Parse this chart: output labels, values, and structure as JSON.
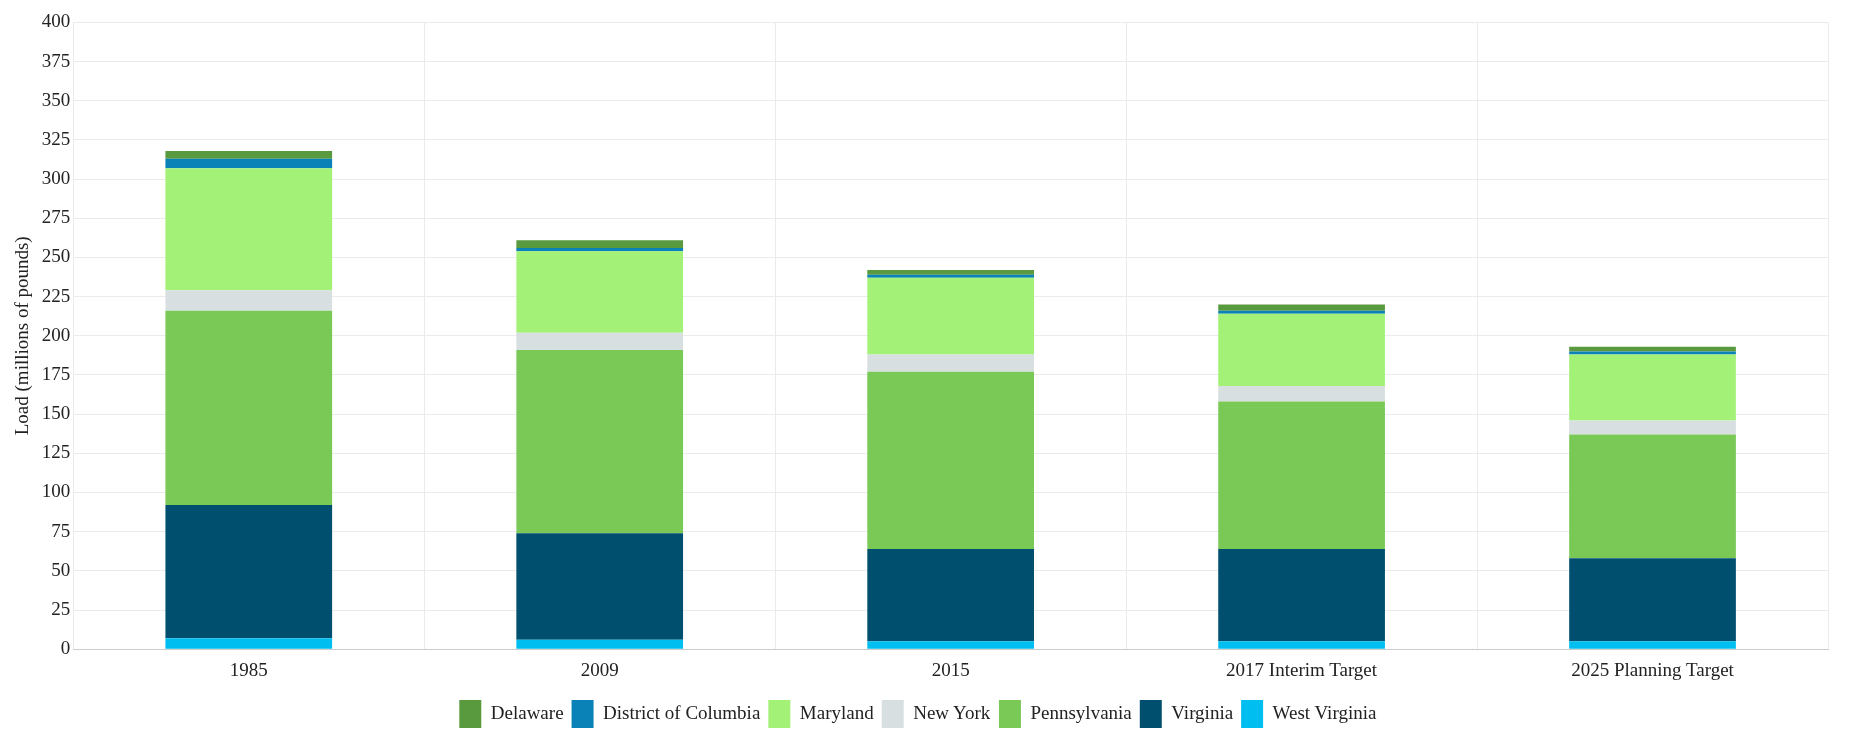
{
  "chart_data": {
    "type": "bar",
    "stacked": true,
    "ylabel": "Load (millions of pounds)",
    "categories": [
      "1985",
      "2009",
      "2015",
      "2017 Interim Target",
      "2025 Planning Target"
    ],
    "series": [
      {
        "name": "West Virginia",
        "color": "#00bff0",
        "values": [
          7,
          6,
          5,
          5,
          5
        ]
      },
      {
        "name": "Virginia",
        "color": "#004f6e",
        "values": [
          85,
          68,
          59,
          59,
          53
        ]
      },
      {
        "name": "Pennsylvania",
        "color": "#7ac957",
        "values": [
          124,
          117,
          113,
          94,
          79
        ]
      },
      {
        "name": "New York",
        "color": "#d7dfe0",
        "values": [
          13,
          11,
          11,
          10,
          9
        ]
      },
      {
        "name": "Maryland",
        "color": "#a3f277",
        "values": [
          78,
          52,
          49,
          46,
          42
        ]
      },
      {
        "name": "District of Columbia",
        "color": "#0a82b8",
        "values": [
          6,
          2,
          2,
          2,
          2
        ]
      },
      {
        "name": "Delaware",
        "color": "#5a9a3e",
        "values": [
          5,
          5,
          3,
          4,
          3
        ]
      }
    ],
    "ylim": [
      0,
      400
    ],
    "yticks": [
      0,
      25,
      50,
      75,
      100,
      125,
      150,
      175,
      200,
      225,
      250,
      275,
      300,
      325,
      350,
      375,
      400
    ],
    "grid": true,
    "legend": "bottom"
  }
}
